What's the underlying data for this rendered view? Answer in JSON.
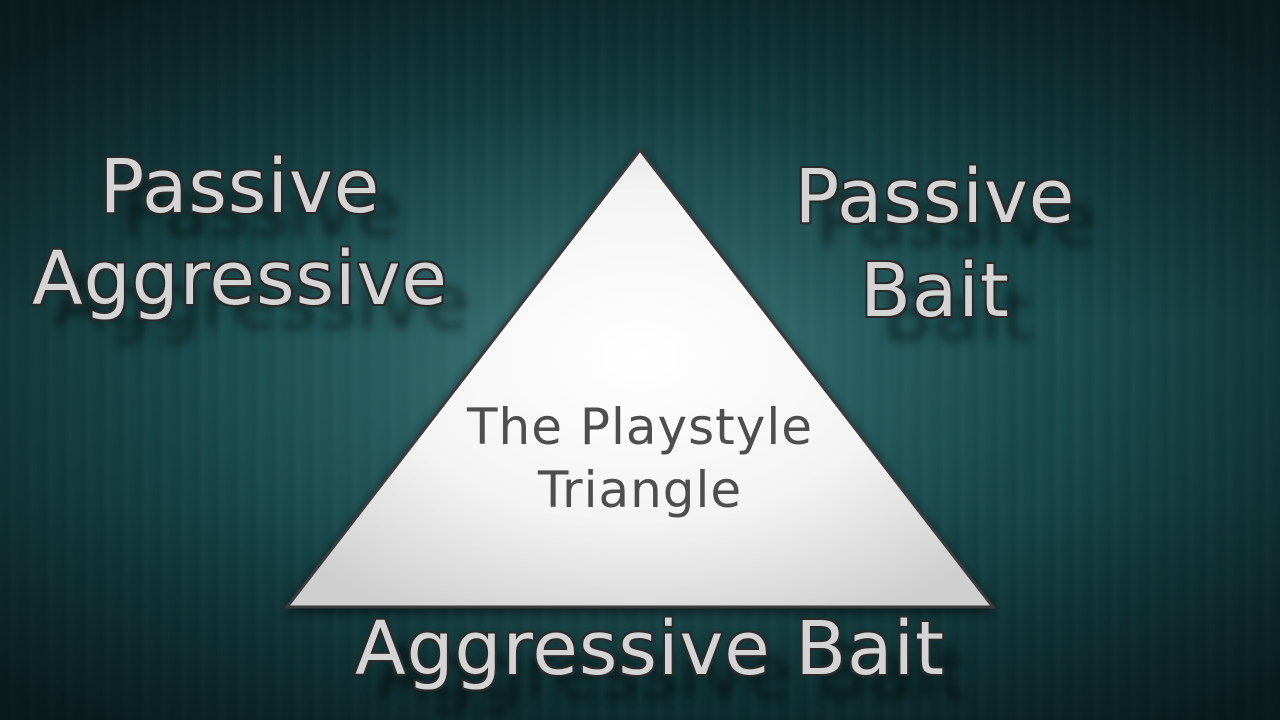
{
  "diagram": {
    "center_title_line1": "The Playstyle",
    "center_title_line2": "Triangle",
    "top_left_line1": "Passive",
    "top_left_line2": "Aggressive",
    "top_right_line1": "Passive",
    "top_right_line2": "Bait",
    "bottom_label": "Aggressive Bait"
  },
  "colors": {
    "background": "#1b4d50",
    "triangle_fill": "#ffffff",
    "label_text": "#d4d4d4",
    "label_outline": "#2a2a2a",
    "center_text": "#4e4e4e"
  }
}
